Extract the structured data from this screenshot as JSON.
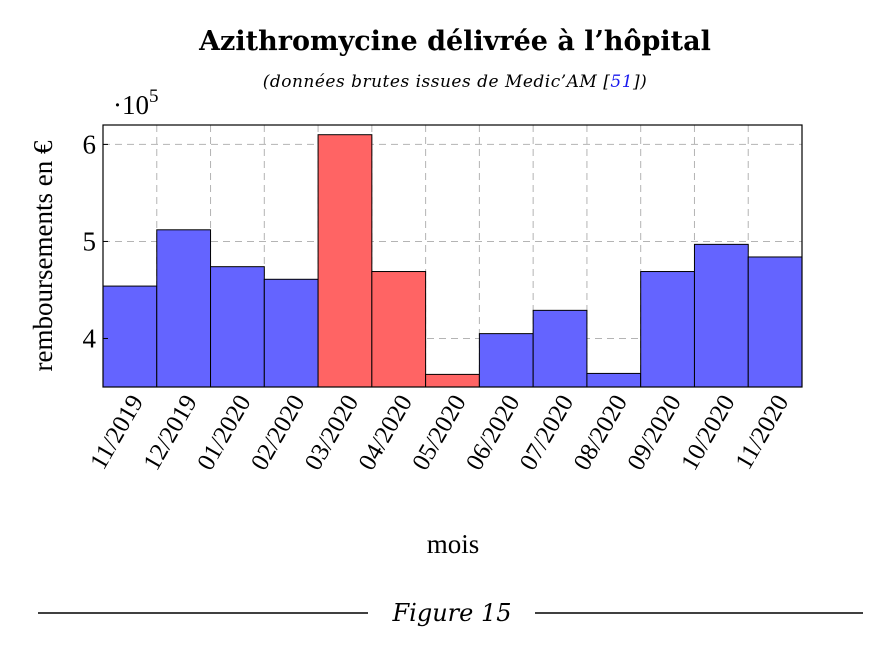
{
  "chart_data": {
    "type": "bar",
    "title": "Azithromycine délivrée à l’hôpital",
    "subtitle_prefix": "(données brutes issues de Medic’AM [",
    "subtitle_ref": "51",
    "subtitle_suffix": "])",
    "xlabel": "mois",
    "ylabel": "remboursements en €",
    "y_multiplier": "·10",
    "y_multiplier_exponent": "5",
    "ylim": [
      3.5,
      6.2
    ],
    "yticks": [
      4,
      5,
      6
    ],
    "ytick_labels": [
      "4",
      "5",
      "6"
    ],
    "grid": true,
    "categories": [
      "11/2019",
      "12/2019",
      "01/2020",
      "02/2020",
      "03/2020",
      "04/2020",
      "05/2020",
      "06/2020",
      "07/2020",
      "08/2020",
      "09/2020",
      "10/2020",
      "11/2020"
    ],
    "values": [
      4.54,
      5.12,
      4.74,
      4.61,
      6.1,
      4.69,
      3.63,
      4.05,
      4.29,
      3.64,
      4.69,
      4.97,
      4.84
    ],
    "bar_colors": [
      "#6464ff",
      "#6464ff",
      "#6464ff",
      "#6464ff",
      "#ff6464",
      "#ff6464",
      "#ff6464",
      "#6464ff",
      "#6464ff",
      "#6464ff",
      "#6464ff",
      "#6464ff",
      "#6464ff"
    ]
  },
  "caption": "Figure 15"
}
